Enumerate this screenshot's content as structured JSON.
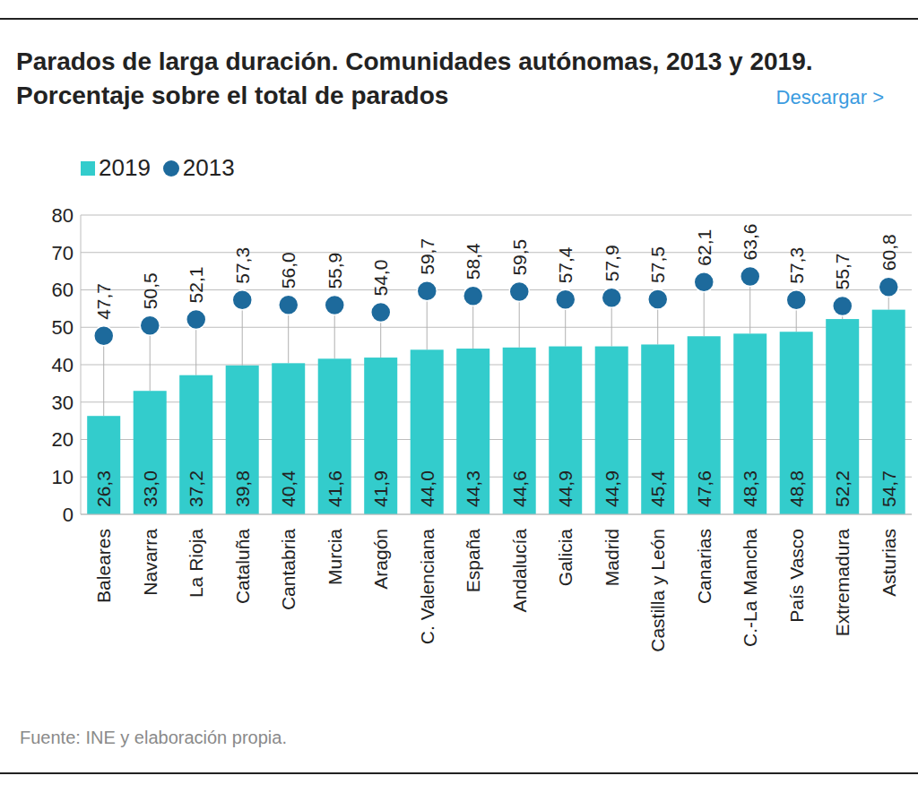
{
  "chart_data": {
    "type": "bar",
    "title": "Parados de larga duración. Comunidades autónomas, 2013 y 2019. Porcentaje sobre el total de parados",
    "annotations": [
      "Descargar >"
    ],
    "source": "Fuente: INE y elaboración propia.",
    "categories": [
      "Baleares",
      "Navarra",
      "La Rioja",
      "Cataluña",
      "Cantabria",
      "Murcia",
      "Aragón",
      "C. Valenciana",
      "España",
      "Andalucía",
      "Galicia",
      "Madrid",
      "Castilla y León",
      "Canarias",
      "C.-La Mancha",
      "País Vasco",
      "Extremadura",
      "Asturias"
    ],
    "series": [
      {
        "name": "2019",
        "type": "bar",
        "color": "#33cccc",
        "values": [
          26.3,
          33.0,
          37.2,
          39.8,
          40.4,
          41.6,
          41.9,
          44.0,
          44.3,
          44.6,
          44.9,
          44.9,
          45.4,
          47.6,
          48.3,
          48.8,
          52.2,
          54.7
        ],
        "value_labels": [
          "26,3",
          "33,0",
          "37,2",
          "39,8",
          "40,4",
          "41,6",
          "41,9",
          "44,0",
          "44,3",
          "44,6",
          "44,9",
          "44,9",
          "45,4",
          "47,6",
          "48,3",
          "48,8",
          "52,2",
          "54,7"
        ]
      },
      {
        "name": "2013",
        "type": "scatter",
        "marker": "circle",
        "color": "#1d6a9c",
        "values": [
          47.7,
          50.5,
          52.1,
          57.3,
          56.0,
          55.9,
          54.0,
          59.7,
          58.4,
          59.5,
          57.4,
          57.9,
          57.5,
          62.1,
          63.6,
          57.3,
          55.7,
          60.8
        ],
        "value_labels": [
          "47,7",
          "50,5",
          "52,1",
          "57,3",
          "56,0",
          "55,9",
          "54,0",
          "59,7",
          "58,4",
          "59,5",
          "57,4",
          "57,9",
          "57,5",
          "62,1",
          "63,6",
          "57,3",
          "55,7",
          "60,8"
        ]
      }
    ],
    "ylim": [
      0,
      80
    ],
    "yticks": [
      0,
      10,
      20,
      30,
      40,
      50,
      60,
      70,
      80
    ],
    "grid": true,
    "data_labels": true,
    "legend": "top left"
  }
}
